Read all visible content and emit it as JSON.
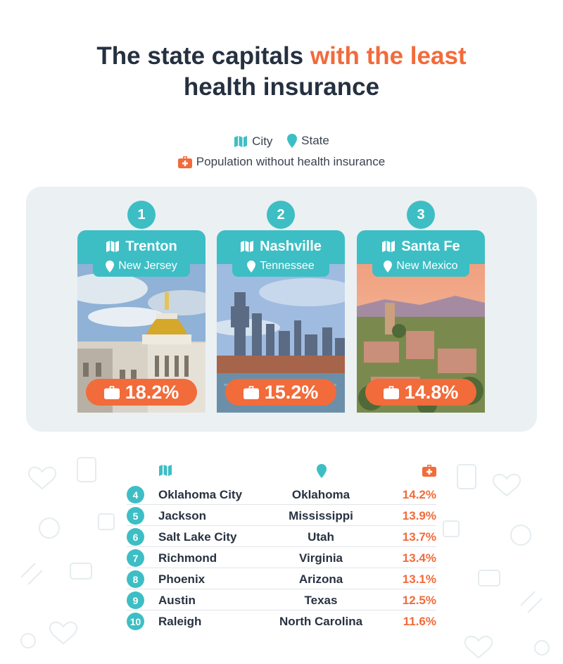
{
  "title": {
    "part1": "The state capitals ",
    "accent": "with the least",
    "line2": "health insurance"
  },
  "legend": {
    "city": "City",
    "state": "State",
    "population": "Population without health insurance"
  },
  "colors": {
    "teal": "#3dbec4",
    "orange": "#f26b3a",
    "panel": "#ebf0f3",
    "text": "#253040"
  },
  "top3": [
    {
      "rank": "1",
      "city": "Trenton",
      "state": "New Jersey",
      "pct": "18.2%",
      "photo": "capitol-dome-photo"
    },
    {
      "rank": "2",
      "city": "Nashville",
      "state": "Tennessee",
      "pct": "15.2%",
      "photo": "city-skyline-photo"
    },
    {
      "rank": "3",
      "city": "Santa Fe",
      "state": "New Mexico",
      "pct": "14.8%",
      "photo": "adobe-town-photo"
    }
  ],
  "table": {
    "rows": [
      {
        "rank": "4",
        "city": "Oklahoma City",
        "state": "Oklahoma",
        "pct": "14.2%"
      },
      {
        "rank": "5",
        "city": "Jackson",
        "state": "Mississippi",
        "pct": "13.9%"
      },
      {
        "rank": "6",
        "city": "Salt Lake City",
        "state": "Utah",
        "pct": "13.7%"
      },
      {
        "rank": "7",
        "city": "Richmond",
        "state": "Virginia",
        "pct": "13.4%"
      },
      {
        "rank": "8",
        "city": "Phoenix",
        "state": "Arizona",
        "pct": "13.1%"
      },
      {
        "rank": "9",
        "city": "Austin",
        "state": "Texas",
        "pct": "12.5%"
      },
      {
        "rank": "10",
        "city": "Raleigh",
        "state": "North Carolina",
        "pct": "11.6%"
      }
    ]
  }
}
